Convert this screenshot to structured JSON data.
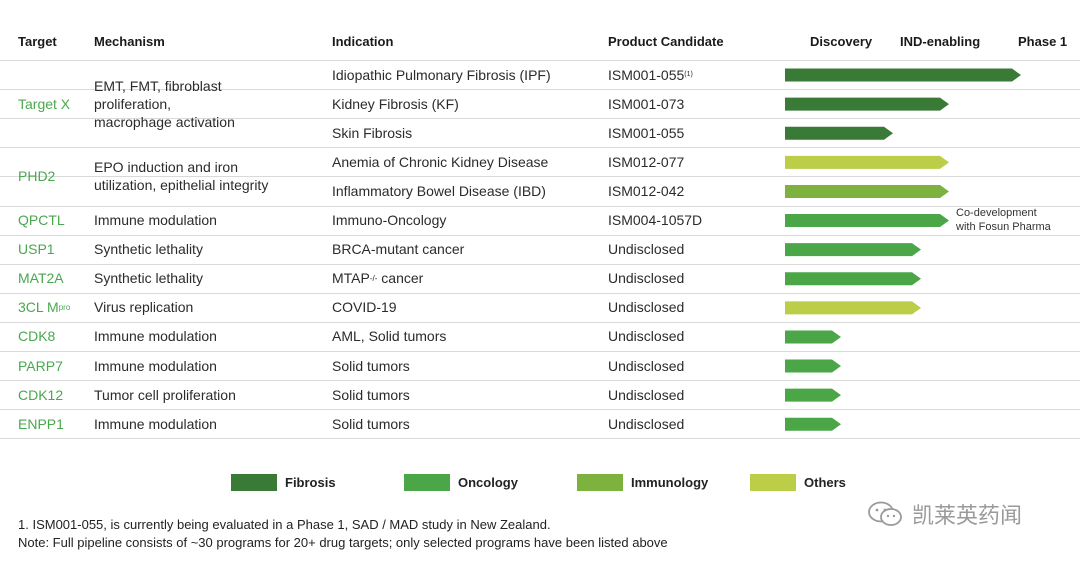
{
  "header": {
    "target": "Target",
    "mechanism": "Mechanism",
    "indication": "Indication",
    "candidate": "Product Candidate",
    "stages": [
      "Discovery",
      "IND-enabling",
      "Phase 1"
    ]
  },
  "groups": [
    {
      "target": "Target X",
      "mechanism": "EMT, FMT, fibroblast proliferation, macrophage activation"
    },
    {
      "target": "PHD2",
      "mechanism": "EPO induction and iron utilization, epithelial integrity"
    },
    {
      "target": "QPCTL",
      "mechanism": "Immune modulation"
    },
    {
      "target": "USP1",
      "mechanism": "Synthetic lethality"
    },
    {
      "target": "MAT2A",
      "mechanism": "Synthetic lethality"
    },
    {
      "target": "3CL M",
      "target_sup": "pro",
      "mechanism": "Virus replication"
    },
    {
      "target": "CDK8",
      "mechanism": "Immune modulation"
    },
    {
      "target": "PARP7",
      "mechanism": "Immune modulation"
    },
    {
      "target": "CDK12",
      "mechanism": "Tumor cell proliferation"
    },
    {
      "target": "ENPP1",
      "mechanism": "Immune modulation"
    }
  ],
  "rows": [
    {
      "indication": "Idiopathic Pulmonary Fibrosis (IPF)",
      "candidate": "ISM001-055",
      "candidate_sup": "(1)"
    },
    {
      "indication": "Kidney Fibrosis (KF)",
      "candidate": "ISM001-073"
    },
    {
      "indication": "Skin Fibrosis",
      "candidate": "ISM001-055"
    },
    {
      "indication": "Anemia of Chronic Kidney Disease",
      "candidate": "ISM012-077"
    },
    {
      "indication": "Inflammatory Bowel Disease (IBD)",
      "candidate": "ISM012-042"
    },
    {
      "indication": "Immuno-Oncology",
      "candidate": "ISM004-1057D"
    },
    {
      "indication": "BRCA-mutant cancer",
      "candidate": "Undisclosed"
    },
    {
      "indication": "MTAP",
      "indication_sup": "-/-",
      "indication_suffix": " cancer",
      "candidate": "Undisclosed"
    },
    {
      "indication": "COVID-19",
      "candidate": "Undisclosed"
    },
    {
      "indication": "AML, Solid tumors",
      "candidate": "Undisclosed"
    },
    {
      "indication": "Solid tumors",
      "candidate": "Undisclosed"
    },
    {
      "indication": "Solid tumors",
      "candidate": "Undisclosed"
    },
    {
      "indication": "Solid tumors",
      "candidate": "Undisclosed"
    }
  ],
  "annotation": {
    "line1": "Co-development",
    "line2": "with Fosun Pharma"
  },
  "legend": [
    {
      "label": "Fibrosis",
      "color": "#3a7a37"
    },
    {
      "label": "Oncology",
      "color": "#4aa647"
    },
    {
      "label": "Immunology",
      "color": "#7db23f"
    },
    {
      "label": "Others",
      "color": "#bccd48"
    }
  ],
  "footnotes": {
    "line1": "1. ISM001-055, is currently being evaluated in a Phase 1, SAD / MAD study in New Zealand.",
    "line2": "Note: Full pipeline consists of ~30 programs for 20+ drug targets; only selected programs have been listed above"
  },
  "watermark": "凯莱英药闻",
  "chart_data": {
    "type": "bar",
    "orientation": "horizontal",
    "stages": [
      "Discovery",
      "IND-enabling",
      "Phase 1"
    ],
    "categories": [
      "ISM001-055 (IPF)",
      "ISM001-073 (KF)",
      "ISM001-055 (Skin Fibrosis)",
      "ISM012-077 (Anemia of CKD)",
      "ISM012-042 (IBD)",
      "ISM004-1057D (Immuno-Oncology)",
      "USP1 (BRCA-mutant cancer)",
      "MAT2A (MTAP-/- cancer)",
      "3CL Mpro (COVID-19)",
      "CDK8 (AML, Solid tumors)",
      "PARP7 (Solid tumors)",
      "CDK12 (Solid tumors)",
      "ENPP1 (Solid tumors)"
    ],
    "values": [
      2.95,
      2.05,
      1.35,
      2.05,
      2.05,
      2.05,
      1.7,
      1.7,
      1.7,
      0.7,
      0.7,
      0.7,
      0.7
    ],
    "value_units": "development stages (0 = start of Discovery, 3 = end of Phase 1)",
    "bar_areas": [
      "Fibrosis",
      "Fibrosis",
      "Fibrosis",
      "Others",
      "Immunology",
      "Oncology",
      "Oncology",
      "Oncology",
      "Others",
      "Oncology",
      "Oncology",
      "Oncology",
      "Oncology"
    ],
    "xlim": [
      0,
      3
    ],
    "legend_position": "bottom"
  }
}
